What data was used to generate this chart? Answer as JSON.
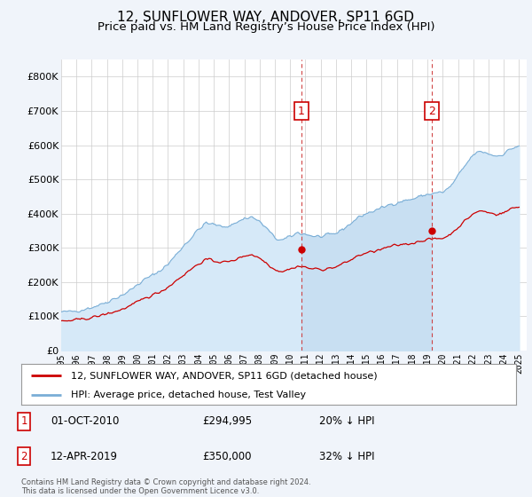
{
  "title": "12, SUNFLOWER WAY, ANDOVER, SP11 6GD",
  "subtitle": "Price paid vs. HM Land Registry’s House Price Index (HPI)",
  "title_fontsize": 11,
  "subtitle_fontsize": 9.5,
  "background_color": "#f0f4fa",
  "plot_bg_color": "#ffffff",
  "hpi_line_color": "#7aaed6",
  "hpi_fill_color": "#d6e9f8",
  "hpi_shade_color": "#c8dff2",
  "price_line_color": "#cc0000",
  "ylim": [
    0,
    850000
  ],
  "yticks": [
    0,
    100000,
    200000,
    300000,
    400000,
    500000,
    600000,
    700000,
    800000
  ],
  "ytick_labels": [
    "£0",
    "£100K",
    "£200K",
    "£300K",
    "£400K",
    "£500K",
    "£600K",
    "£700K",
    "£800K"
  ],
  "xmin": 1995.0,
  "xmax": 2025.5,
  "sale1_x": 2010.75,
  "sale1_y": 294995,
  "sale1_label": "1",
  "sale1_date": "01-OCT-2010",
  "sale1_price": "£294,995",
  "sale1_hpi": "20% ↓ HPI",
  "sale2_x": 2019.28,
  "sale2_y": 350000,
  "sale2_label": "2",
  "sale2_date": "12-APR-2019",
  "sale2_price": "£350,000",
  "sale2_hpi": "32% ↓ HPI",
  "legend_line1": "12, SUNFLOWER WAY, ANDOVER, SP11 6GD (detached house)",
  "legend_line2": "HPI: Average price, detached house, Test Valley",
  "footer": "Contains HM Land Registry data © Crown copyright and database right 2024.\nThis data is licensed under the Open Government Licence v3.0."
}
